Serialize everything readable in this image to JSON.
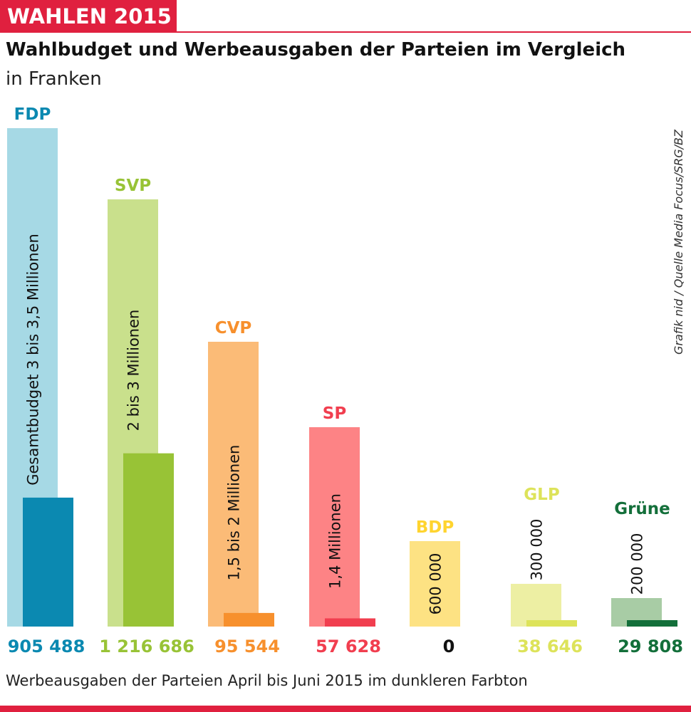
{
  "header": {
    "kicker": "WAHLEN 2015",
    "title": "Wahlbudget und Werbeausgaben der Parteien im Vergleich",
    "subtitle": "in Franken"
  },
  "footnote": "Werbeausgaben der Parteien April bis Juni 2015 im dunkleren Farbton",
  "source": "Grafik nid / Quelle Media Focus/SRG/BZ",
  "chart_data": {
    "type": "bar",
    "title": "Wahlbudget und Werbeausgaben der Parteien im Vergleich",
    "ylabel": "Franken",
    "categories": [
      "FDP",
      "SVP",
      "CVP",
      "SP",
      "BDP",
      "GLP",
      "Grüne"
    ],
    "series": [
      {
        "name": "Gesamtbudget",
        "values": [
          3500000,
          3000000,
          2000000,
          1400000,
          600000,
          300000,
          200000
        ],
        "labels": [
          "Gesamtbudget 3 bis 3,5 Millionen",
          "2 bis 3 Millionen",
          "1,5 bis 2 Millionen",
          "1,4 Millionen",
          "600 000",
          "300 000",
          "200 000"
        ]
      },
      {
        "name": "Werbeausgaben April bis Juni 2015",
        "values": [
          905488,
          1216686,
          95544,
          57628,
          0,
          38646,
          29808
        ],
        "labels": [
          "905 488",
          "1 216 686",
          "95 544",
          "57 628",
          "0",
          "38 646",
          "29 808"
        ]
      }
    ],
    "colors": {
      "light": [
        "#a6d9e5",
        "#c9e08c",
        "#fbbb77",
        "#fd8385",
        "#fde283",
        "#edefa3",
        "#a8cca5"
      ],
      "dark": [
        "#0b89b1",
        "#98c336",
        "#f7902d",
        "#f13e4f",
        "#ffd42f",
        "#dde35a",
        "#136f3a"
      ],
      "name": [
        "#0b89b1",
        "#98c336",
        "#f7902d",
        "#f13e4f",
        "#ffd42f",
        "#dde35a",
        "#136f3a"
      ],
      "value": [
        "#0b89b1",
        "#98c336",
        "#f7902d",
        "#f13e4f",
        "#111111",
        "#dde35a",
        "#136f3a"
      ]
    },
    "ylim": [
      0,
      3500000
    ]
  }
}
